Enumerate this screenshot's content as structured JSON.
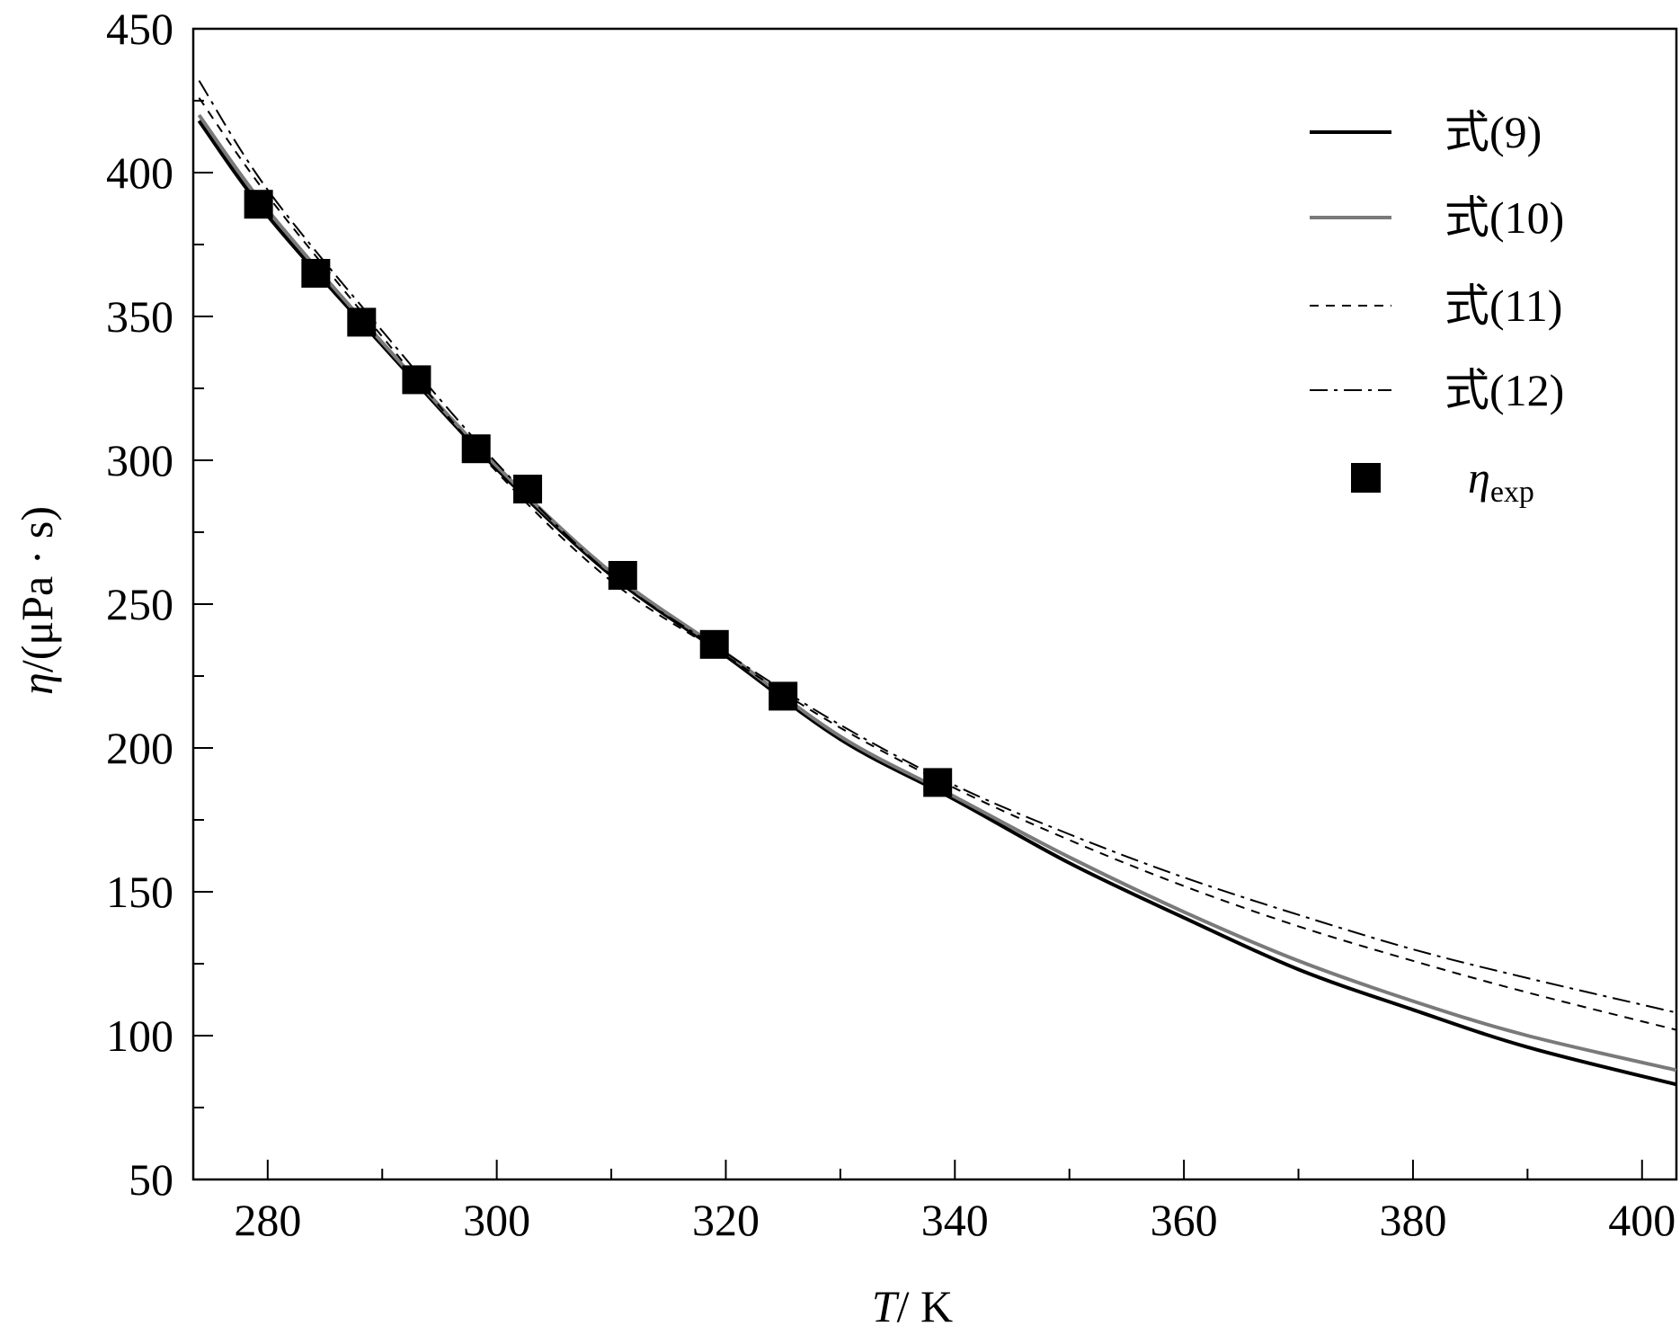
{
  "chart_data": {
    "type": "line",
    "title": "",
    "xlabel": {
      "var": "T",
      "unit": "/ K"
    },
    "ylabel": {
      "var": "η",
      "unit": "/(μPa · s)"
    },
    "xlim": [
      273.5,
      403
    ],
    "ylim": [
      50,
      450
    ],
    "xticks": [
      280,
      300,
      320,
      340,
      360,
      380,
      400
    ],
    "yticks": [
      50,
      100,
      150,
      200,
      250,
      300,
      350,
      400,
      450
    ],
    "grid": false,
    "legend_position": "top-right",
    "series": [
      {
        "name": "式(9)",
        "style": "solid",
        "color": "#000000",
        "x": [
          274,
          280,
          290,
          300,
          310,
          320,
          330,
          340,
          350,
          360,
          370,
          380,
          390,
          403
        ],
        "values": [
          418,
          385,
          340,
          297,
          260,
          232,
          203,
          182,
          160,
          141,
          123,
          109,
          96,
          83
        ]
      },
      {
        "name": "式(10)",
        "style": "solid",
        "color": "#7a7a7a",
        "x": [
          274,
          280,
          290,
          300,
          310,
          320,
          330,
          340,
          350,
          360,
          370,
          380,
          390,
          403
        ],
        "values": [
          420,
          387,
          341,
          298,
          261,
          233,
          204,
          183,
          162,
          143,
          126,
          112,
          100,
          88
        ]
      },
      {
        "name": "式(11)",
        "style": "dashed",
        "color": "#000000",
        "x": [
          274,
          280,
          290,
          300,
          310,
          320,
          330,
          340,
          350,
          360,
          370,
          380,
          390,
          403
        ],
        "values": [
          426,
          392,
          343,
          296,
          258,
          232,
          207,
          186,
          168,
          152,
          138,
          126,
          115,
          102
        ]
      },
      {
        "name": "式(12)",
        "style": "dashdot",
        "color": "#000000",
        "x": [
          274,
          280,
          290,
          300,
          310,
          320,
          330,
          340,
          350,
          360,
          370,
          380,
          390,
          403
        ],
        "values": [
          432,
          394,
          345,
          299,
          260,
          233,
          208,
          187,
          170,
          155,
          142,
          130,
          120,
          108
        ]
      }
    ],
    "points": {
      "name": "exp",
      "label_main": "η",
      "label_sub": "exp",
      "marker": "square",
      "x": [
        279.2,
        284.2,
        288.2,
        293.0,
        298.2,
        302.7,
        311.0,
        319.0,
        325.0,
        338.5
      ],
      "values": [
        389,
        365,
        348,
        328,
        304,
        290,
        260,
        236,
        218,
        188
      ]
    }
  }
}
